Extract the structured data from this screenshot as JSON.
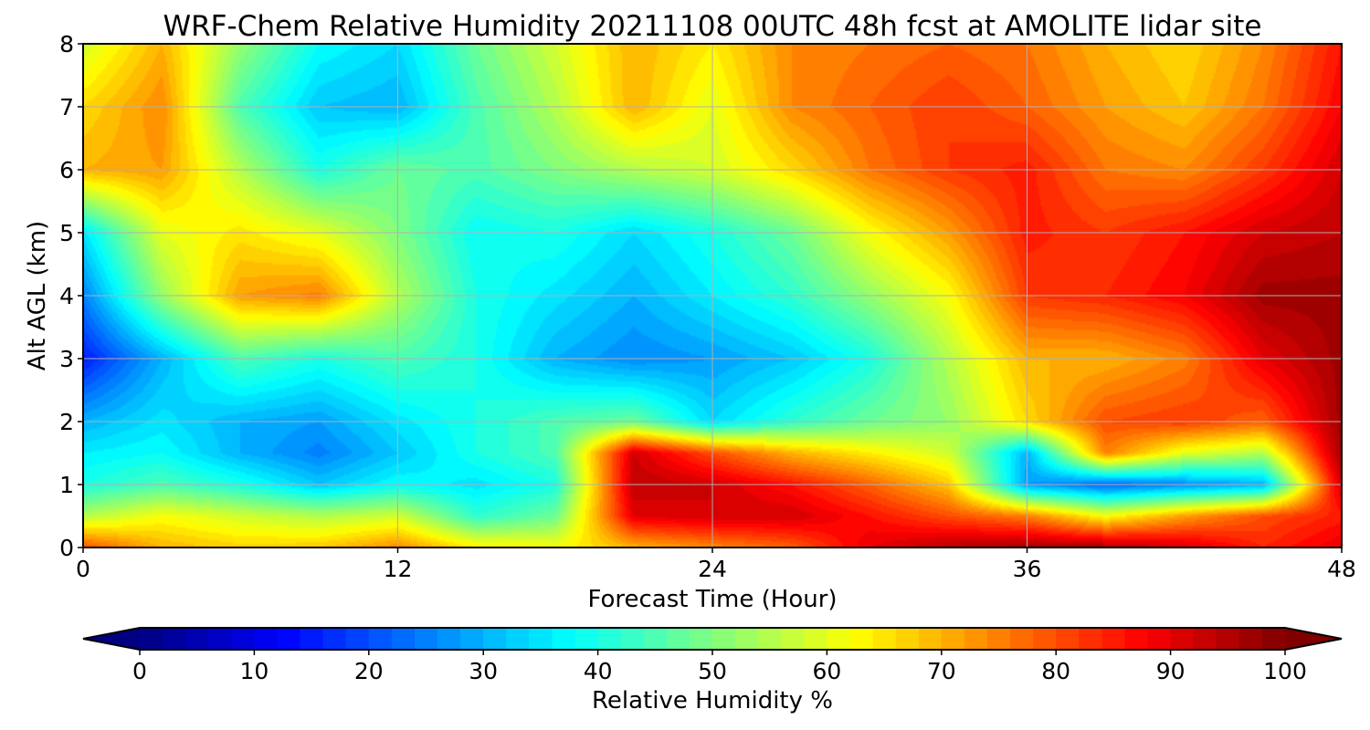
{
  "chart_data": {
    "type": "heatmap",
    "title": "WRF-Chem Relative Humidity 20211108 00UTC 48h fcst at AMOLITE lidar site",
    "xlabel": "Forecast Time (Hour)",
    "ylabel": "Alt AGL (km)",
    "xlim": [
      0,
      48
    ],
    "ylim": [
      0,
      8
    ],
    "xticks": [
      0,
      12,
      24,
      36,
      48
    ],
    "yticks": [
      0,
      1,
      2,
      3,
      4,
      5,
      6,
      7,
      8
    ],
    "grid": true,
    "colormap": "jet",
    "colorbar": {
      "label": "Relative Humidity %",
      "orientation": "horizontal",
      "placement": "bottom",
      "ticks": [
        0,
        10,
        20,
        30,
        40,
        50,
        60,
        70,
        80,
        90,
        100
      ],
      "vmin": 0,
      "vmax": 100,
      "extend": "both"
    },
    "x": [
      0,
      3,
      6,
      9,
      12,
      15,
      18,
      21,
      24,
      27,
      30,
      33,
      36,
      39,
      42,
      45,
      48
    ],
    "y": [
      0,
      0.5,
      1,
      1.5,
      2,
      3,
      4,
      5,
      6,
      7,
      8
    ],
    "z": [
      [
        80,
        70,
        67,
        68,
        74,
        64,
        62,
        70,
        74,
        78,
        90,
        95,
        97,
        97,
        92,
        84,
        90
      ],
      [
        55,
        62,
        58,
        55,
        58,
        42,
        48,
        90,
        92,
        92,
        86,
        80,
        75,
        62,
        72,
        80,
        85
      ],
      [
        40,
        45,
        40,
        32,
        38,
        35,
        40,
        94,
        92,
        86,
        78,
        68,
        28,
        22,
        26,
        30,
        92
      ],
      [
        36,
        38,
        30,
        25,
        32,
        40,
        45,
        92,
        80,
        70,
        64,
        58,
        30,
        75,
        60,
        55,
        97
      ],
      [
        30,
        35,
        30,
        28,
        35,
        40,
        45,
        48,
        34,
        42,
        48,
        52,
        66,
        80,
        82,
        78,
        97
      ],
      [
        15,
        30,
        45,
        40,
        45,
        40,
        30,
        26,
        28,
        32,
        40,
        55,
        70,
        70,
        75,
        90,
        97
      ],
      [
        25,
        52,
        72,
        75,
        55,
        40,
        35,
        30,
        36,
        42,
        52,
        62,
        82,
        84,
        88,
        97,
        97
      ],
      [
        35,
        60,
        65,
        60,
        50,
        38,
        40,
        34,
        40,
        48,
        62,
        72,
        85,
        82,
        86,
        92,
        94
      ],
      [
        70,
        72,
        55,
        40,
        48,
        45,
        50,
        55,
        58,
        66,
        76,
        82,
        85,
        76,
        74,
        82,
        92
      ],
      [
        66,
        74,
        45,
        32,
        30,
        45,
        55,
        70,
        60,
        74,
        78,
        82,
        78,
        72,
        68,
        76,
        88
      ],
      [
        58,
        70,
        52,
        38,
        34,
        48,
        58,
        70,
        64,
        74,
        76,
        78,
        76,
        70,
        66,
        74,
        86
      ]
    ]
  }
}
